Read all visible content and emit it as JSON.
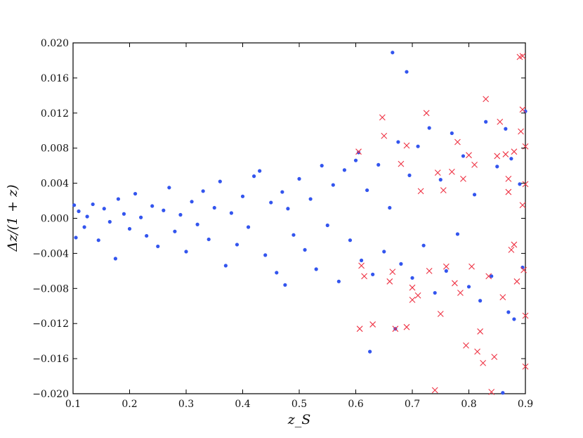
{
  "chart_data": {
    "type": "scatter",
    "title": "",
    "xlabel": "z_S",
    "ylabel": "Δz/(1 + z)",
    "xlim": [
      0.1,
      0.9
    ],
    "ylim": [
      -0.02,
      0.02
    ],
    "x_ticks": [
      "0.1",
      "0.2",
      "0.3",
      "0.4",
      "0.5",
      "0.6",
      "0.7",
      "0.8",
      "0.9"
    ],
    "y_ticks": [
      "0.020",
      "0.016",
      "0.012",
      "0.008",
      "0.004",
      "0.000",
      "−0.004",
      "−0.008",
      "−0.012",
      "−0.016",
      "−0.020"
    ],
    "grid": false,
    "series": [
      {
        "marker": "dot",
        "color": "#3355ee",
        "points": [
          [
            0.102,
            0.0015
          ],
          [
            0.105,
            -0.0022
          ],
          [
            0.11,
            0.0008
          ],
          [
            0.12,
            -0.001
          ],
          [
            0.125,
            0.0002
          ],
          [
            0.135,
            0.0016
          ],
          [
            0.145,
            -0.0025
          ],
          [
            0.155,
            0.0011
          ],
          [
            0.165,
            -0.0004
          ],
          [
            0.175,
            -0.0046
          ],
          [
            0.18,
            0.0022
          ],
          [
            0.19,
            0.0005
          ],
          [
            0.2,
            -0.0012
          ],
          [
            0.21,
            0.0028
          ],
          [
            0.22,
            0.0001
          ],
          [
            0.23,
            -0.002
          ],
          [
            0.24,
            0.0014
          ],
          [
            0.25,
            -0.0032
          ],
          [
            0.26,
            0.0009
          ],
          [
            0.27,
            0.0035
          ],
          [
            0.28,
            -0.0015
          ],
          [
            0.29,
            0.0004
          ],
          [
            0.3,
            -0.0038
          ],
          [
            0.31,
            0.0019
          ],
          [
            0.32,
            -0.0007
          ],
          [
            0.33,
            0.0031
          ],
          [
            0.34,
            -0.0024
          ],
          [
            0.35,
            0.0012
          ],
          [
            0.36,
            0.0042
          ],
          [
            0.37,
            -0.0054
          ],
          [
            0.38,
            0.0006
          ],
          [
            0.39,
            -0.003
          ],
          [
            0.4,
            0.0025
          ],
          [
            0.41,
            -0.001
          ],
          [
            0.42,
            0.0048
          ],
          [
            0.43,
            0.0054
          ],
          [
            0.44,
            -0.0042
          ],
          [
            0.45,
            0.0018
          ],
          [
            0.46,
            -0.0062
          ],
          [
            0.47,
            0.003
          ],
          [
            0.475,
            -0.0076
          ],
          [
            0.48,
            0.0011
          ],
          [
            0.49,
            -0.0019
          ],
          [
            0.5,
            0.0045
          ],
          [
            0.51,
            -0.0036
          ],
          [
            0.52,
            0.0022
          ],
          [
            0.53,
            -0.0058
          ],
          [
            0.54,
            0.006
          ],
          [
            0.55,
            -0.0008
          ],
          [
            0.56,
            0.0038
          ],
          [
            0.57,
            -0.0072
          ],
          [
            0.58,
            0.0055
          ],
          [
            0.59,
            -0.0025
          ],
          [
            0.6,
            0.0066
          ],
          [
            0.605,
            0.0075
          ],
          [
            0.61,
            -0.0048
          ],
          [
            0.62,
            0.0032
          ],
          [
            0.625,
            -0.0152
          ],
          [
            0.63,
            -0.0064
          ],
          [
            0.64,
            0.0061
          ],
          [
            0.65,
            -0.0038
          ],
          [
            0.66,
            0.0012
          ],
          [
            0.665,
            0.0189
          ],
          [
            0.67,
            -0.0126
          ],
          [
            0.675,
            0.0087
          ],
          [
            0.68,
            -0.0052
          ],
          [
            0.69,
            0.0167
          ],
          [
            0.695,
            0.0049
          ],
          [
            0.7,
            -0.0068
          ],
          [
            0.71,
            0.0082
          ],
          [
            0.72,
            -0.0031
          ],
          [
            0.73,
            0.0103
          ],
          [
            0.74,
            -0.0085
          ],
          [
            0.75,
            0.0044
          ],
          [
            0.76,
            -0.006
          ],
          [
            0.77,
            0.0097
          ],
          [
            0.78,
            -0.0018
          ],
          [
            0.79,
            0.0071
          ],
          [
            0.8,
            -0.0078
          ],
          [
            0.81,
            0.0027
          ],
          [
            0.82,
            -0.0094
          ],
          [
            0.83,
            0.011
          ],
          [
            0.84,
            -0.0066
          ],
          [
            0.85,
            0.0059
          ],
          [
            0.86,
            -0.0199
          ],
          [
            0.865,
            0.0102
          ],
          [
            0.87,
            -0.0107
          ],
          [
            0.875,
            0.0068
          ],
          [
            0.88,
            -0.0115
          ],
          [
            0.89,
            0.0039
          ],
          [
            0.895,
            -0.0056
          ],
          [
            0.9,
            0.0122
          ]
        ]
      },
      {
        "marker": "x",
        "color": "#ee3344",
        "points": [
          [
            0.605,
            0.0076
          ],
          [
            0.607,
            -0.0126
          ],
          [
            0.61,
            -0.0054
          ],
          [
            0.615,
            -0.0066
          ],
          [
            0.63,
            -0.0121
          ],
          [
            0.647,
            0.0115
          ],
          [
            0.65,
            0.0094
          ],
          [
            0.66,
            -0.0072
          ],
          [
            0.665,
            -0.0061
          ],
          [
            0.67,
            -0.0126
          ],
          [
            0.68,
            0.0062
          ],
          [
            0.69,
            0.0083
          ],
          [
            0.69,
            -0.0124
          ],
          [
            0.7,
            -0.0079
          ],
          [
            0.7,
            -0.0093
          ],
          [
            0.71,
            -0.0088
          ],
          [
            0.715,
            0.0031
          ],
          [
            0.725,
            0.012
          ],
          [
            0.73,
            -0.006
          ],
          [
            0.74,
            -0.0196
          ],
          [
            0.745,
            0.0052
          ],
          [
            0.75,
            -0.0109
          ],
          [
            0.755,
            0.0032
          ],
          [
            0.76,
            -0.0055
          ],
          [
            0.77,
            0.0053
          ],
          [
            0.775,
            -0.0074
          ],
          [
            0.78,
            0.0087
          ],
          [
            0.785,
            -0.0085
          ],
          [
            0.79,
            0.0045
          ],
          [
            0.795,
            -0.0145
          ],
          [
            0.8,
            0.0072
          ],
          [
            0.805,
            -0.0055
          ],
          [
            0.81,
            0.0061
          ],
          [
            0.815,
            -0.0152
          ],
          [
            0.82,
            -0.0129
          ],
          [
            0.825,
            -0.0165
          ],
          [
            0.83,
            0.0136
          ],
          [
            0.835,
            -0.0066
          ],
          [
            0.84,
            -0.0198
          ],
          [
            0.845,
            -0.0158
          ],
          [
            0.85,
            0.0071
          ],
          [
            0.855,
            0.011
          ],
          [
            0.86,
            -0.009
          ],
          [
            0.865,
            0.0073
          ],
          [
            0.87,
            0.003
          ],
          [
            0.875,
            -0.0036
          ],
          [
            0.88,
            0.0076
          ],
          [
            0.885,
            -0.0072
          ],
          [
            0.89,
            0.0184
          ],
          [
            0.892,
            0.0099
          ],
          [
            0.895,
            0.0124
          ],
          [
            0.897,
            -0.0059
          ],
          [
            0.9,
            0.0082
          ],
          [
            0.9,
            -0.0169
          ],
          [
            0.9,
            -0.0111
          ],
          [
            0.895,
            0.0185
          ],
          [
            0.9,
            0.0039
          ],
          [
            0.895,
            0.0015
          ],
          [
            0.88,
            -0.003
          ],
          [
            0.87,
            0.0045
          ]
        ]
      }
    ]
  }
}
